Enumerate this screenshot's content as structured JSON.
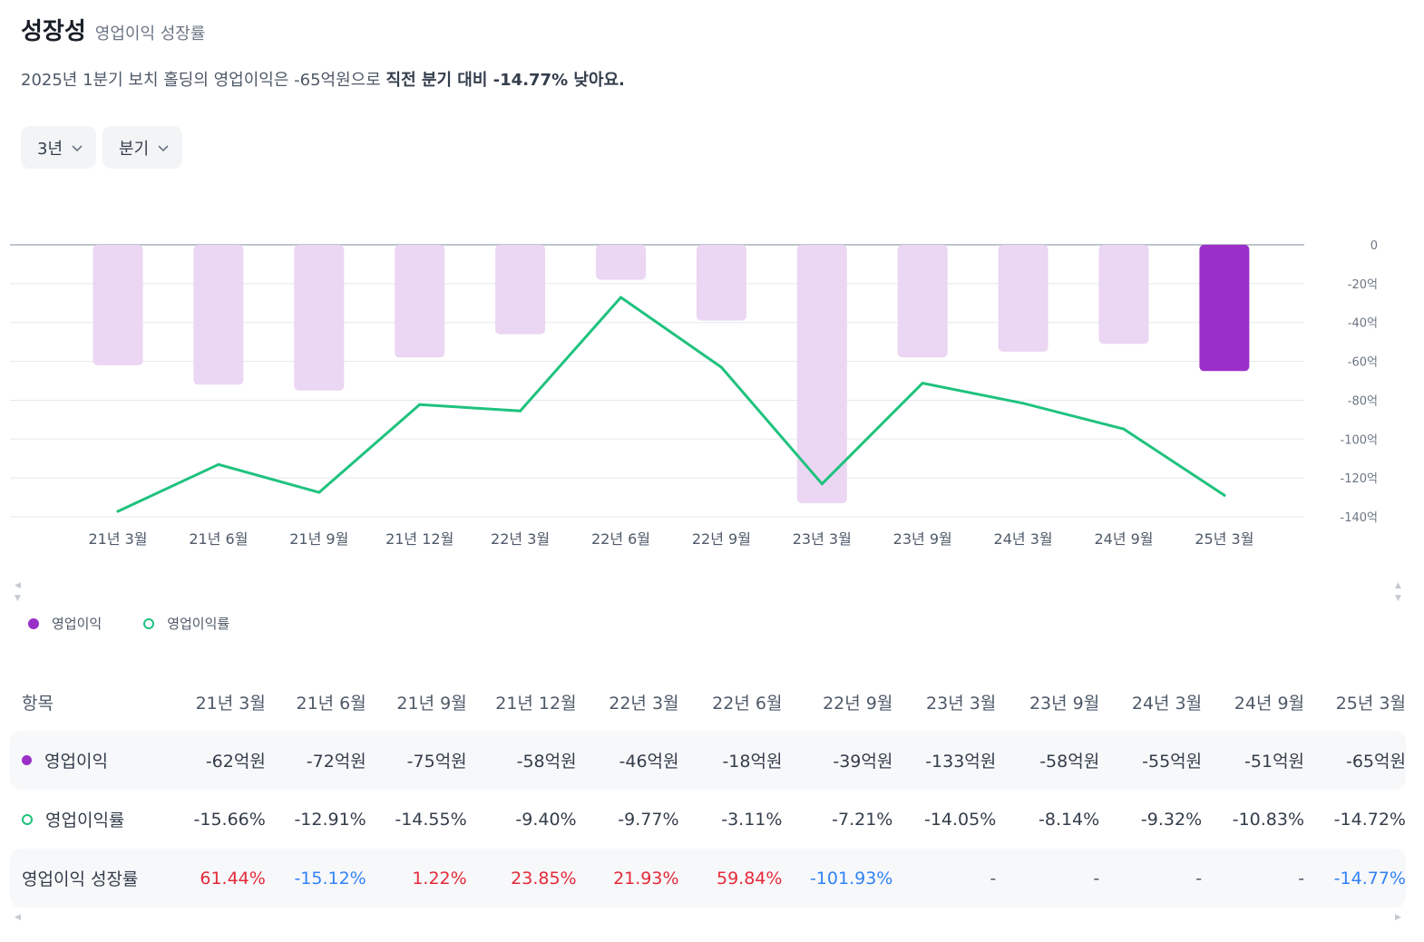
{
  "header": {
    "title": "성장성",
    "subtitle": "영업이익 성장률"
  },
  "summary": {
    "text": "2025년 1분기 보치 홀딩의 영업이익은 -65억원으로 ",
    "highlight": "직전 분기 대비 -14.77% 낮아요."
  },
  "filters": {
    "period": "3년",
    "interval": "분기"
  },
  "legend": {
    "bar": "영업이익",
    "line": "영업이익률"
  },
  "colors": {
    "bar_light": "#ebd6f3",
    "bar_highlight": "#9b30c8",
    "line": "#1fc27e",
    "positive": "#e42939",
    "negative": "#3182f6"
  },
  "chart_data": {
    "type": "bar+line",
    "categories": [
      "21년 3월",
      "21년 6월",
      "21년 9월",
      "21년 12월",
      "22년 3월",
      "22년 6월",
      "22년 9월",
      "23년 3월",
      "23년 9월",
      "24년 3월",
      "24년 9월",
      "25년 3월"
    ],
    "series": [
      {
        "name": "영업이익",
        "type": "bar",
        "unit": "억원",
        "values": [
          -62,
          -72,
          -75,
          -58,
          -46,
          -18,
          -39,
          -133,
          -58,
          -55,
          -51,
          -65
        ]
      },
      {
        "name": "영업이익률",
        "type": "line",
        "unit": "%",
        "values": [
          -15.66,
          -12.91,
          -14.55,
          -9.4,
          -9.77,
          -3.11,
          -7.21,
          -14.05,
          -8.14,
          -9.32,
          -10.83,
          -14.72
        ]
      }
    ],
    "y_axis": {
      "ticks": [
        "0",
        "-20억",
        "-40억",
        "-60억",
        "-80억",
        "-100억",
        "-120억",
        "-140억"
      ],
      "range": [
        -140,
        0
      ],
      "position": "right"
    },
    "line_range": [
      -16.3,
      0.2
    ],
    "grid": true,
    "legend_position": "bottom-left"
  },
  "table": {
    "header_label": "항목",
    "columns": [
      "21년 3월",
      "21년 6월",
      "21년 9월",
      "21년 12월",
      "22년 3월",
      "22년 6월",
      "22년 9월",
      "23년 3월",
      "23년 9월",
      "24년 3월",
      "24년 9월",
      "25년 3월"
    ],
    "rows": [
      {
        "label": "영업이익",
        "marker": "fill",
        "values": [
          "-62억원",
          "-72억원",
          "-75억원",
          "-58억원",
          "-46억원",
          "-18억원",
          "-39억원",
          "-133억원",
          "-58억원",
          "-55억원",
          "-51억원",
          "-65억원"
        ]
      },
      {
        "label": "영업이익률",
        "marker": "ring",
        "values": [
          "-15.66%",
          "-12.91%",
          "-14.55%",
          "-9.40%",
          "-9.77%",
          "-3.11%",
          "-7.21%",
          "-14.05%",
          "-8.14%",
          "-9.32%",
          "-10.83%",
          "-14.72%"
        ]
      },
      {
        "label": "영업이익 성장률",
        "marker": "none",
        "values": [
          "61.44%",
          "-15.12%",
          "1.22%",
          "23.85%",
          "21.93%",
          "59.84%",
          "-101.93%",
          "-",
          "-",
          "-",
          "-",
          "-14.77%"
        ]
      }
    ]
  }
}
